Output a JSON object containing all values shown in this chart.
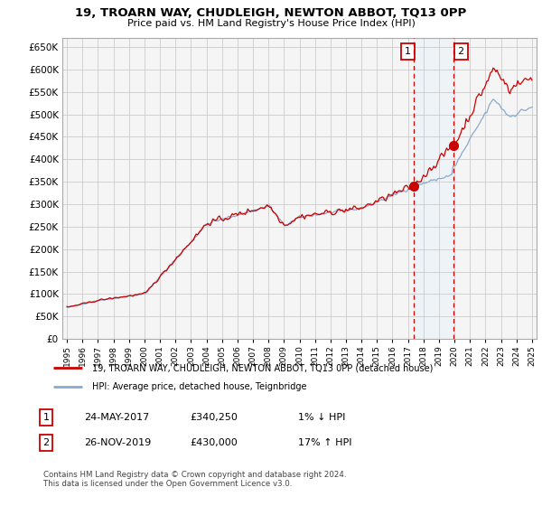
{
  "title": "19, TROARN WAY, CHUDLEIGH, NEWTON ABBOT, TQ13 0PP",
  "subtitle": "Price paid vs. HM Land Registry's House Price Index (HPI)",
  "ylim": [
    0,
    650000
  ],
  "yticks": [
    0,
    50000,
    100000,
    150000,
    200000,
    250000,
    300000,
    350000,
    400000,
    450000,
    500000,
    550000,
    600000,
    650000
  ],
  "xstart": 1995,
  "xend": 2025,
  "sale1_date": 2017.38,
  "sale1_price": 340250,
  "sale2_date": 2019.91,
  "sale2_price": 430000,
  "line_color_red": "#cc0000",
  "line_color_blue": "#88aacc",
  "shade_color": "#ddeeff",
  "vline_color": "#cc0000",
  "legend_label1": "19, TROARN WAY, CHUDLEIGH, NEWTON ABBOT, TQ13 0PP (detached house)",
  "legend_label2": "HPI: Average price, detached house, Teignbridge",
  "footer": "Contains HM Land Registry data © Crown copyright and database right 2024.\nThis data is licensed under the Open Government Licence v3.0.",
  "table_rows": [
    {
      "num": "1",
      "date": "24-MAY-2017",
      "price": "£340,250",
      "pct": "1% ↓ HPI"
    },
    {
      "num": "2",
      "date": "26-NOV-2019",
      "price": "£430,000",
      "pct": "17% ↑ HPI"
    }
  ],
  "background_color": "#ffffff",
  "grid_color": "#cccccc"
}
